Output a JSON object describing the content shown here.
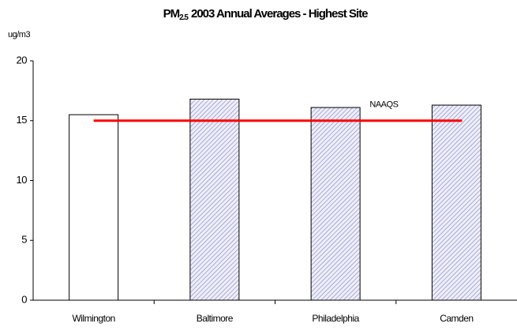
{
  "chart_data": {
    "type": "bar",
    "title": {
      "main": "PM",
      "subscript": "2.5",
      "rest": "2003 Annual Averages - Highest Site"
    },
    "y_unit_label": "ug/m3",
    "categories": [
      "Wilmington",
      "Baltimore",
      "Philadelphia",
      "Camden"
    ],
    "values": [
      15.5,
      16.8,
      16.1,
      16.3
    ],
    "colors": [
      "#ffffff",
      "#8080c0",
      "#8080c0",
      "#8080c0"
    ],
    "hatched": [
      false,
      true,
      true,
      true
    ],
    "ylim": [
      0,
      20
    ],
    "yticks": [
      0,
      5,
      10,
      15,
      20
    ],
    "grid": false,
    "reference_line": {
      "value": 15,
      "label": "NAAQS",
      "color": "#ff0000"
    }
  }
}
